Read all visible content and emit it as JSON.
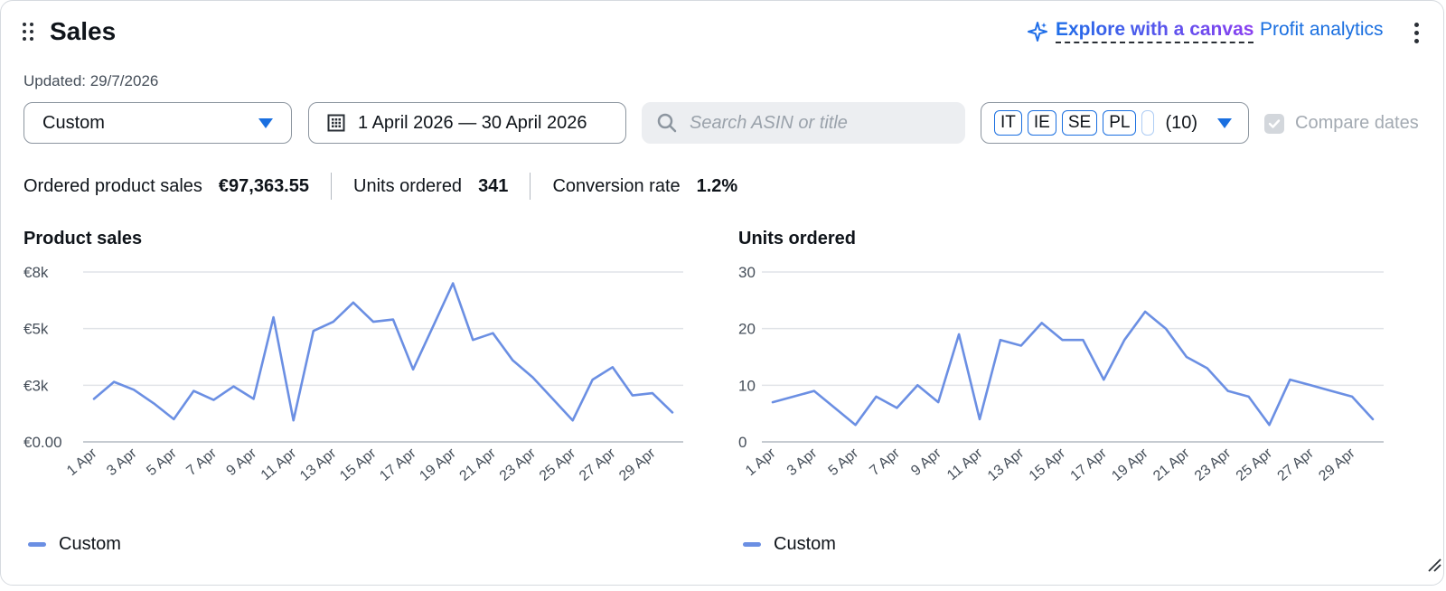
{
  "widget": {
    "title": "Sales",
    "explore_label": "Explore with a canvas",
    "profit_label": "Profit analytics",
    "updated": "Updated: 29/7/2026"
  },
  "filters": {
    "period_value": "Custom",
    "date_range": "1 April 2026 — 30 April 2026",
    "search_placeholder": "Search ASIN or title",
    "markets": [
      "IT",
      "IE",
      "SE",
      "PL"
    ],
    "markets_count": "(10)",
    "compare_label": "Compare dates",
    "compare_checked": true
  },
  "metrics": [
    {
      "label": "Ordered product sales",
      "value": "€97,363.55"
    },
    {
      "label": "Units ordered",
      "value": "341"
    },
    {
      "label": "Conversion rate",
      "value": "1.2%"
    }
  ],
  "colors": {
    "accent": "#1a6fe0",
    "series": "#6b8fe3"
  },
  "icons": [
    "drag-handle-icon",
    "sparkle-icon",
    "kebab-menu-icon",
    "calendar-icon",
    "search-icon",
    "chevron-down-icon",
    "checkbox-checked-icon",
    "resize-handle-icon"
  ],
  "chart_data": [
    {
      "type": "line",
      "title": "Product sales",
      "x": [
        "1 Apr",
        "2 Apr",
        "3 Apr",
        "4 Apr",
        "5 Apr",
        "6 Apr",
        "7 Apr",
        "8 Apr",
        "9 Apr",
        "10 Apr",
        "11 Apr",
        "12 Apr",
        "13 Apr",
        "14 Apr",
        "15 Apr",
        "16 Apr",
        "17 Apr",
        "18 Apr",
        "19 Apr",
        "20 Apr",
        "21 Apr",
        "22 Apr",
        "23 Apr",
        "24 Apr",
        "25 Apr",
        "26 Apr",
        "27 Apr",
        "28 Apr",
        "29 Apr",
        "30 Apr"
      ],
      "x_tick_labels": [
        "1 Apr",
        "3 Apr",
        "5 Apr",
        "7 Apr",
        "9 Apr",
        "11 Apr",
        "13 Apr",
        "15 Apr",
        "17 Apr",
        "19 Apr",
        "21 Apr",
        "23 Apr",
        "25 Apr",
        "27 Apr",
        "29 Apr"
      ],
      "y_ticks": [
        0,
        2500,
        5000,
        7500
      ],
      "y_tick_labels": [
        "€0.00",
        "€3k",
        "€5k",
        "€8k"
      ],
      "ylim": [
        0,
        7500
      ],
      "grid": true,
      "legend": "bottom-left",
      "series": [
        {
          "name": "Custom",
          "values": [
            1900,
            2650,
            2300,
            1700,
            1000,
            2250,
            1850,
            2450,
            1900,
            5500,
            950,
            4900,
            5300,
            6150,
            5300,
            5400,
            3200,
            5100,
            7000,
            4500,
            4800,
            3600,
            2850,
            1900,
            950,
            2750,
            3300,
            2050,
            2150,
            1300
          ]
        }
      ]
    },
    {
      "type": "line",
      "title": "Units ordered",
      "x": [
        "1 Apr",
        "2 Apr",
        "3 Apr",
        "4 Apr",
        "5 Apr",
        "6 Apr",
        "7 Apr",
        "8 Apr",
        "9 Apr",
        "10 Apr",
        "11 Apr",
        "12 Apr",
        "13 Apr",
        "14 Apr",
        "15 Apr",
        "16 Apr",
        "17 Apr",
        "18 Apr",
        "19 Apr",
        "20 Apr",
        "21 Apr",
        "22 Apr",
        "23 Apr",
        "24 Apr",
        "25 Apr",
        "26 Apr",
        "27 Apr",
        "28 Apr",
        "29 Apr",
        "30 Apr"
      ],
      "x_tick_labels": [
        "1 Apr",
        "3 Apr",
        "5 Apr",
        "7 Apr",
        "9 Apr",
        "11 Apr",
        "13 Apr",
        "15 Apr",
        "17 Apr",
        "19 Apr",
        "21 Apr",
        "23 Apr",
        "25 Apr",
        "27 Apr",
        "29 Apr"
      ],
      "y_ticks": [
        0,
        10,
        20,
        30
      ],
      "y_tick_labels": [
        "0",
        "10",
        "20",
        "30"
      ],
      "ylim": [
        0,
        30
      ],
      "grid": true,
      "legend": "bottom-left",
      "series": [
        {
          "name": "Custom",
          "values": [
            7,
            8,
            9,
            6,
            3,
            8,
            6,
            10,
            7,
            19,
            4,
            18,
            17,
            21,
            18,
            18,
            11,
            18,
            23,
            20,
            15,
            13,
            9,
            8,
            3,
            11,
            10,
            9,
            8,
            4
          ]
        }
      ]
    }
  ]
}
